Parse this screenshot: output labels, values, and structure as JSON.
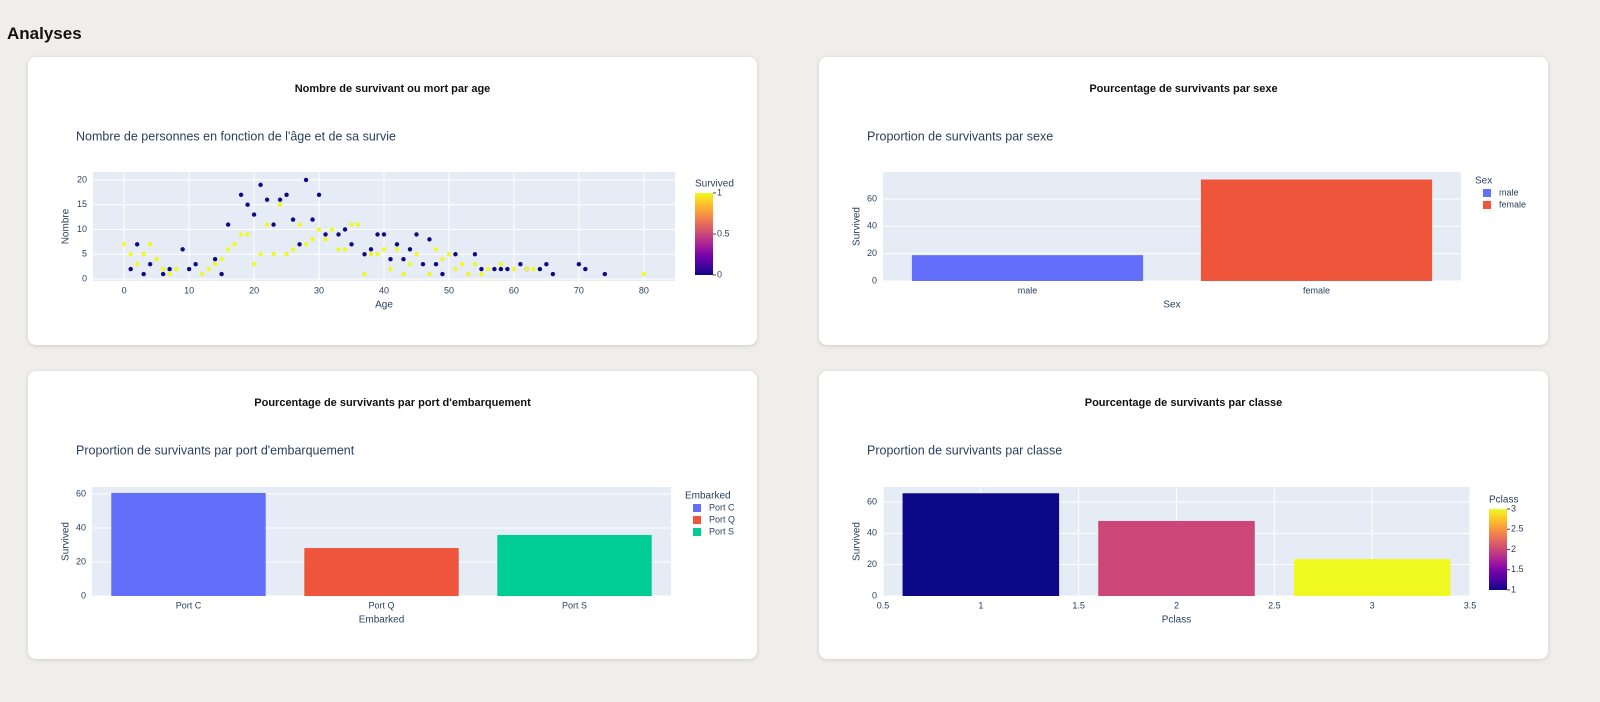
{
  "page_title": "Analyses",
  "chart_data": [
    {
      "type": "scatter",
      "heading": "Nombre de survivant ou mort par age",
      "title": "Nombre de personnes en fonction de l'âge et de sa survie",
      "x_label": "Age",
      "y_label": "Nombre",
      "x": [
        1,
        2,
        3,
        4,
        6,
        7,
        9,
        10,
        11,
        14,
        15,
        16,
        18,
        19,
        20,
        21,
        22,
        23,
        24,
        25,
        26,
        27,
        28,
        29,
        30,
        31,
        33,
        34,
        35,
        37,
        38,
        39,
        40,
        41,
        42,
        43,
        44,
        45,
        46,
        47,
        48,
        49,
        51,
        54,
        55,
        57,
        58,
        59,
        61,
        62,
        64,
        65,
        66,
        70,
        71,
        74,
        0,
        1,
        2,
        3,
        4,
        5,
        6,
        7,
        8,
        12,
        13,
        14,
        15,
        16,
        17,
        18,
        19,
        20,
        21,
        22,
        23,
        24,
        25,
        26,
        27,
        28,
        29,
        30,
        31,
        32,
        33,
        34,
        35,
        36,
        37,
        38,
        39,
        40,
        41,
        42,
        43,
        44,
        45,
        47,
        48,
        49,
        50,
        51,
        52,
        53,
        54,
        55,
        56,
        58,
        60,
        62,
        63,
        80
      ],
      "y": [
        2,
        7,
        1,
        3,
        1,
        2,
        6,
        2,
        3,
        4,
        1,
        11,
        17,
        15,
        13,
        19,
        16,
        11,
        16,
        17,
        12,
        7,
        20,
        12,
        17,
        9,
        9,
        10,
        7,
        5,
        6,
        9,
        9,
        4,
        7,
        4,
        6,
        9,
        3,
        8,
        3,
        1,
        5,
        5,
        2,
        2,
        2,
        2,
        3,
        2,
        2,
        3,
        1,
        3,
        2,
        1,
        7,
        5,
        3,
        5,
        7,
        4,
        2,
        1,
        2,
        1,
        2,
        3,
        4,
        6,
        7,
        9,
        9,
        3,
        5,
        11,
        5,
        15,
        5,
        6,
        11,
        7,
        8,
        10,
        8,
        10,
        6,
        6,
        11,
        11,
        1,
        5,
        5,
        6,
        2,
        6,
        1,
        3,
        5,
        1,
        6,
        4,
        5,
        2,
        3,
        1,
        3,
        1,
        2,
        3,
        2,
        2,
        2,
        1
      ],
      "color_values": [
        0,
        0,
        0,
        0,
        0,
        0,
        0,
        0,
        0,
        0,
        0,
        0,
        0,
        0,
        0,
        0,
        0,
        0,
        0,
        0,
        0,
        0,
        0,
        0,
        0,
        0,
        0,
        0,
        0,
        0,
        0,
        0,
        0,
        0,
        0,
        0,
        0,
        0,
        0,
        0,
        0,
        0,
        0,
        0,
        0,
        0,
        0,
        0,
        0,
        0,
        0,
        0,
        0,
        0,
        0,
        0,
        1,
        1,
        1,
        1,
        1,
        1,
        1,
        1,
        1,
        1,
        1,
        1,
        1,
        1,
        1,
        1,
        1,
        1,
        1,
        1,
        1,
        1,
        1,
        1,
        1,
        1,
        1,
        1,
        1,
        1,
        1,
        1,
        1,
        1,
        1,
        1,
        1,
        1,
        1,
        1,
        1,
        1,
        1,
        1,
        1,
        1,
        1,
        1,
        1,
        1,
        1,
        1,
        1,
        1,
        1,
        1,
        1,
        1
      ],
      "colorscale": [
        "#0d0887",
        "#46039f",
        "#7201a8",
        "#9c179e",
        "#bd3786",
        "#d8576b",
        "#ed7953",
        "#fb9f3a",
        "#fdca26",
        "#f0f921"
      ],
      "colorbar": {
        "title": "Survived",
        "lim": [
          0,
          1
        ],
        "ticks": [
          0,
          0.5,
          1
        ]
      },
      "xlim": [
        -4.8,
        84.8
      ],
      "xticks": [
        0,
        10,
        20,
        30,
        40,
        50,
        60,
        70,
        80
      ],
      "ylim": [
        -0.4,
        21.6
      ],
      "yticks": [
        0,
        5,
        10,
        15,
        20
      ],
      "grid": true
    },
    {
      "type": "bar",
      "heading": "Pourcentage de survivants par sexe",
      "title": "Proportion de survivants par sexe",
      "x_label": "Sex",
      "y_label": "Survived",
      "categories": [
        "male",
        "female"
      ],
      "values": [
        18.9,
        74.2
      ],
      "colors": [
        "#636efa",
        "#ef553b"
      ],
      "legend_title": "Sex",
      "ylim": [
        0,
        79.7
      ],
      "yticks": [
        0,
        20,
        40,
        60
      ],
      "grid": true
    },
    {
      "type": "bar",
      "heading": "Pourcentage de survivants par port d'embarquement",
      "title": "Proportion de survivants par port d'embarquement",
      "x_label": "Embarked",
      "y_label": "Survived",
      "categories": [
        "Port C",
        "Port Q",
        "Port S"
      ],
      "values": [
        60.6,
        28.2,
        35.9
      ],
      "colors": [
        "#636efa",
        "#ef553b",
        "#00cc96"
      ],
      "legend_title": "Embarked",
      "ylim": [
        0,
        64.1
      ],
      "yticks": [
        0,
        20,
        40,
        60
      ],
      "grid": true
    },
    {
      "type": "bar",
      "heading": "Pourcentage de survivants par classe",
      "title": "Proportion de survivants par classe",
      "x_label": "Pclass",
      "y_label": "Survived",
      "x": [
        1,
        2,
        3
      ],
      "values": [
        65.6,
        47.9,
        23.6
      ],
      "colors": [
        "#0d0887",
        "#cc4778",
        "#f0f921"
      ],
      "colorscale": [
        "#0d0887",
        "#46039f",
        "#7201a8",
        "#9c179e",
        "#bd3786",
        "#d8576b",
        "#ed7953",
        "#fb9f3a",
        "#fdca26",
        "#f0f921"
      ],
      "colorbar": {
        "title": "Pclass",
        "lim": [
          1,
          3
        ],
        "ticks": [
          1,
          1.5,
          2,
          2.5,
          3
        ]
      },
      "xlim": [
        0.5,
        3.5
      ],
      "xticks": [
        0.5,
        1,
        1.5,
        2,
        2.5,
        3,
        3.5
      ],
      "ylim": [
        0,
        69.6
      ],
      "yticks": [
        0,
        20,
        40,
        60
      ],
      "grid": true
    }
  ]
}
